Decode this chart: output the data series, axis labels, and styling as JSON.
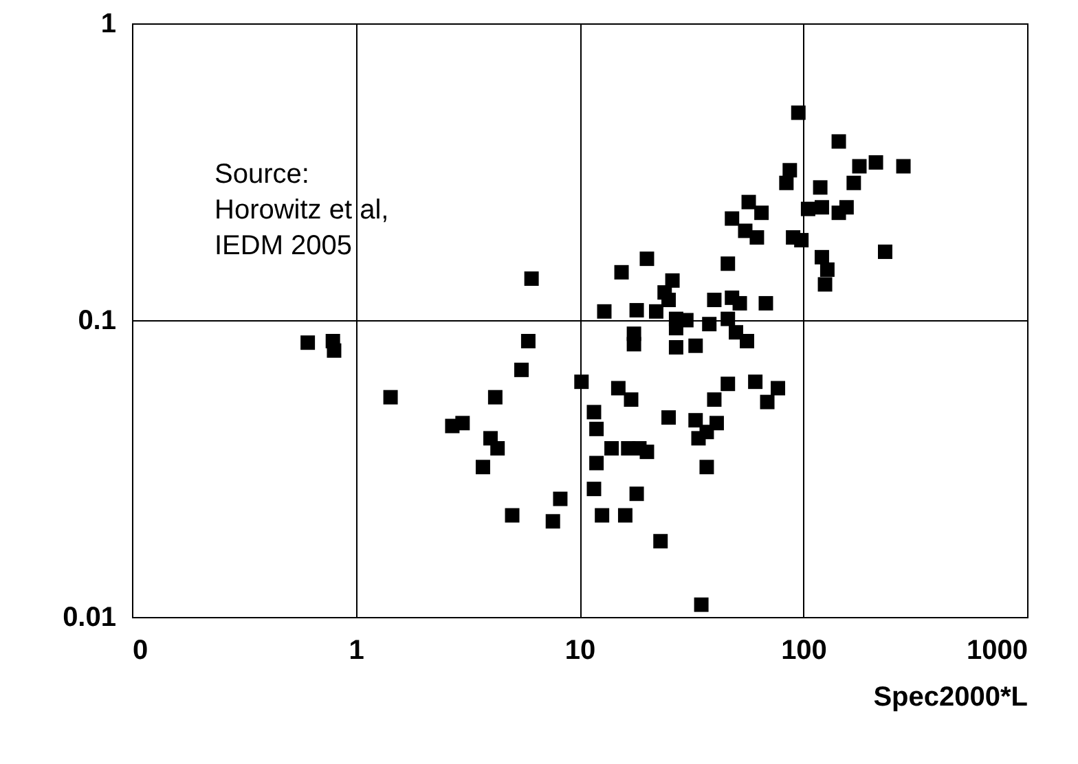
{
  "chart_data": {
    "type": "scatter",
    "xlabel": "Spec2000*L",
    "annotations": [
      "Source:\nHorowitz et al,\nIEDM 2005"
    ],
    "log": "xy",
    "grid": true,
    "marker": "square",
    "xlim": [
      0.1,
      1000
    ],
    "xticks": [
      {
        "value": 0.1,
        "label": "0"
      },
      1,
      10,
      100,
      1000
    ],
    "ylim": [
      0.01,
      1
    ],
    "yticks": [
      0.01,
      0.1,
      1
    ],
    "series": [
      {
        "color": "#000000",
        "x": [
          0.61,
          0.79,
          0.8,
          1.43,
          2.7,
          3.0,
          4.0,
          4.3,
          3.7,
          5.0,
          7.6,
          8.2,
          4.2,
          5.5,
          5.9,
          6.1,
          10.2,
          11.6,
          11.9,
          13.9,
          11.9,
          11.6,
          12.6,
          16.0,
          12.9,
          15.4,
          95,
          144,
          178,
          211,
          280,
          87,
          84,
          119,
          168,
          57,
          65,
          48,
          55,
          62,
          90,
          98,
          105,
          121,
          144,
          156,
          232,
          121,
          128,
          125,
          46,
          20,
          26,
          24,
          25,
          18,
          22,
          27,
          30,
          27,
          38,
          40,
          48,
          52,
          68,
          46,
          50,
          56,
          17.5,
          17.5,
          27,
          33,
          14.9,
          17,
          25,
          33,
          41,
          34,
          37,
          40,
          46,
          61,
          69,
          77,
          37,
          18,
          23,
          35,
          16.5,
          18.5,
          20
        ],
        "values": [
          0.084,
          0.085,
          0.079,
          0.055,
          0.044,
          0.045,
          0.04,
          0.037,
          0.032,
          0.022,
          0.021,
          0.025,
          0.055,
          0.068,
          0.085,
          0.138,
          0.062,
          0.049,
          0.043,
          0.037,
          0.033,
          0.027,
          0.022,
          0.022,
          0.107,
          0.145,
          0.5,
          0.4,
          0.33,
          0.34,
          0.33,
          0.32,
          0.29,
          0.28,
          0.29,
          0.25,
          0.23,
          0.22,
          0.2,
          0.19,
          0.19,
          0.186,
          0.237,
          0.24,
          0.23,
          0.24,
          0.17,
          0.163,
          0.148,
          0.132,
          0.155,
          0.161,
          0.136,
          0.124,
          0.117,
          0.108,
          0.107,
          0.101,
          0.1,
          0.094,
          0.097,
          0.117,
          0.119,
          0.114,
          0.114,
          0.101,
          0.091,
          0.085,
          0.09,
          0.083,
          0.081,
          0.082,
          0.059,
          0.054,
          0.047,
          0.046,
          0.045,
          0.04,
          0.042,
          0.054,
          0.061,
          0.062,
          0.053,
          0.059,
          0.032,
          0.026,
          0.018,
          0.011,
          0.037,
          0.037,
          0.036
        ]
      }
    ]
  }
}
